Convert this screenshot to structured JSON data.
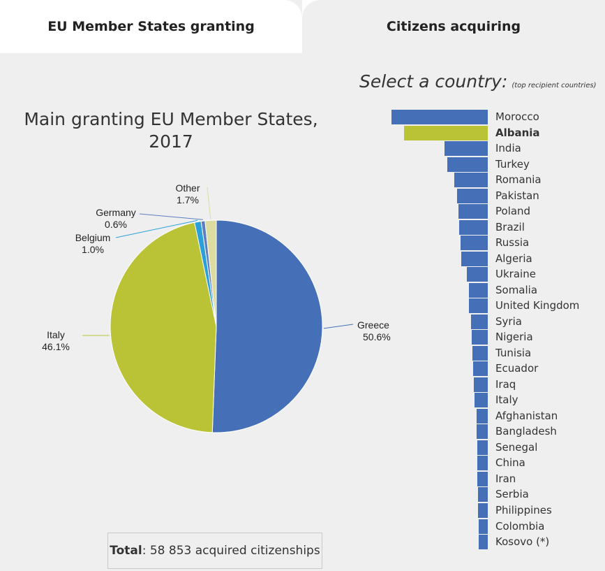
{
  "tabs": [
    {
      "label": "EU Member States granting",
      "active": true
    },
    {
      "label": "Citizens acquiring",
      "active": false
    }
  ],
  "pie": {
    "title_line1": "Main granting EU Member States,",
    "title_line2": "2017"
  },
  "total": {
    "label": "Total",
    "text": ": 58 853 acquired citizenships"
  },
  "selector": {
    "title": "Select a country:",
    "note": "(top recipient countries)"
  },
  "chart_data": [
    {
      "type": "pie",
      "title": "Main granting EU Member States, 2017",
      "slices": [
        {
          "label": "Greece",
          "value": 50.6,
          "display": "50.6%",
          "color": "#4570b8"
        },
        {
          "label": "Italy",
          "value": 46.1,
          "display": "46.1%",
          "color": "#b9c335"
        },
        {
          "label": "Belgium",
          "value": 1.0,
          "display": "1.0%",
          "color": "#2b9fd8"
        },
        {
          "label": "Germany",
          "value": 0.6,
          "display": "0.6%",
          "color": "#5c7fc2"
        },
        {
          "label": "Other",
          "value": 1.7,
          "display": "1.7%",
          "color": "#dcdca0"
        }
      ]
    },
    {
      "type": "bar",
      "orientation": "horizontal",
      "categories": [
        "Morocco",
        "Albania",
        "India",
        "Turkey",
        "Romania",
        "Pakistan",
        "Poland",
        "Brazil",
        "Russia",
        "Algeria",
        "Ukraine",
        "Somalia",
        "United Kingdom",
        "Syria",
        "Nigeria",
        "Tunisia",
        "Ecuador",
        "Iraq",
        "Italy",
        "Afghanistan",
        "Bangladesh",
        "Senegal",
        "China",
        "Iran",
        "Serbia",
        "Philippines",
        "Colombia",
        "Kosovo (*)"
      ],
      "values": [
        137,
        119,
        62,
        58,
        48,
        44,
        42,
        41,
        39,
        38,
        30,
        27,
        27,
        24,
        23,
        22,
        21,
        20,
        19,
        16,
        16,
        15,
        15,
        15,
        14,
        14,
        13,
        13
      ],
      "selected": "Albania",
      "colors": {
        "default": "#4570b8",
        "selected": "#b9c335"
      }
    }
  ]
}
